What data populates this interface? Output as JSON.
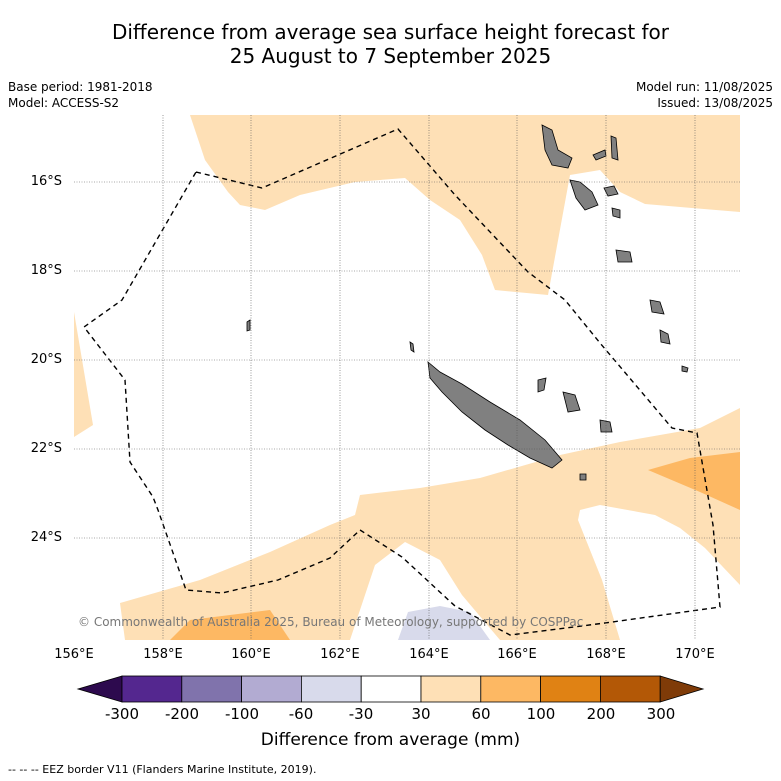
{
  "title_line1": "Difference from average sea surface height forecast for",
  "title_line2": "25 August to 7 September 2025",
  "base_period": "Base period: 1981-2018",
  "model": "Model: ACCESS-S2",
  "model_run": "Model run: 11/08/2025",
  "issued": "Issued: 13/08/2025",
  "lat_labels": [
    "16°S",
    "18°S",
    "20°S",
    "22°S",
    "24°S"
  ],
  "lon_labels": [
    "156°E",
    "158°E",
    "160°E",
    "162°E",
    "164°E",
    "166°E",
    "168°E",
    "170°E"
  ],
  "copyright": "© Commonwealth of Australia 2025, Bureau of Meteorology, supported by COSPPac",
  "colorbar": {
    "labels": [
      "-300",
      "-200",
      "-100",
      "-60",
      "-30",
      "30",
      "60",
      "100",
      "200",
      "300"
    ],
    "colors": [
      "#2d0a4e",
      "#54278f",
      "#8073ac",
      "#b2abd2",
      "#d8daeb",
      "#ffffff",
      "#fee0b6",
      "#fdb863",
      "#e08214",
      "#b35806",
      "#7f3b08"
    ],
    "title": "Difference from average (mm)"
  },
  "eez_note": "--  --  -- EEZ border V11 (Flanders Marine Institute, 2019).",
  "map_colors": {
    "positive_light": "#fee0b6",
    "positive_mid": "#fdb863",
    "negative_light": "#d8daeb",
    "land": "#808080"
  }
}
